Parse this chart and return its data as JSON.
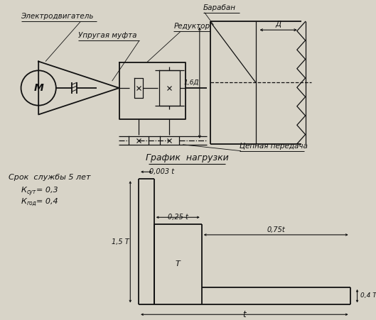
{
  "bg_color": "#d8d4c8",
  "line_color": "#111111",
  "label_electromotor": "Электродвигатель",
  "label_spring_coupling": "Упругая муфта",
  "label_drum": "Барабан",
  "label_reducer": "Редуктор",
  "label_chain": "Цепная передача",
  "label_graph_title": "График  нагрузки",
  "label_service_life": "Срок  службы 5 лет",
  "label_ksut_full": "К",
  "label_ksut_sub": "сут",
  "label_ksut_val": " = 0,3",
  "label_kgod_full": "К",
  "label_kgod_sub": "год",
  "label_kgod_val": " = 0,4",
  "dim_D": "Д",
  "dim_1_6D": "1,6Д",
  "dim_0003t": "0,003 t",
  "dim_025t": "0,25 t",
  "dim_075t": "0,75t",
  "dim_15T": "1,5 Т",
  "dim_T": "Т",
  "dim_04T": "0,4 Т",
  "dim_t": "t"
}
